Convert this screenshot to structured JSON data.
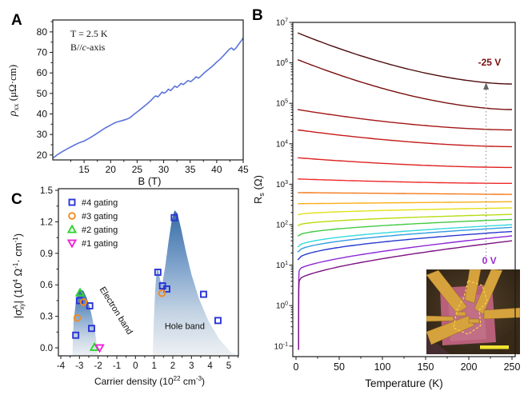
{
  "panels": {
    "a": {
      "label": "A"
    },
    "b": {
      "label": "B"
    },
    "c": {
      "label": "C"
    }
  },
  "chart_data": [
    {
      "panel": "A",
      "type": "line",
      "xlabel": "B (T)",
      "ylabel_parts": [
        {
          "t": "ρ",
          "fs": 14,
          "it": 1
        },
        {
          "t": "xx",
          "dy": 3,
          "fs": 9
        },
        {
          "t": " (μΩ·cm)",
          "dy": -3,
          "fs": 13
        }
      ],
      "annotations": {
        "line1": "T = 2.5 K",
        "line2_parts": [
          {
            "t": "B//",
            "fs": 12
          },
          {
            "t": "c",
            "fs": 12,
            "it": 1
          },
          {
            "t": "-axis",
            "fs": 12
          }
        ]
      },
      "xlim": [
        9.1,
        45
      ],
      "ylim": [
        17.6,
        85.8
      ],
      "x_ticks": [
        15,
        20,
        25,
        30,
        35,
        40,
        45
      ],
      "y_ticks": [
        20,
        30,
        40,
        50,
        60,
        70,
        80
      ],
      "line_color": "#5b74d8",
      "points": [
        [
          9.2,
          18.6
        ],
        [
          10,
          20.2
        ],
        [
          11,
          21.8
        ],
        [
          12,
          23.2
        ],
        [
          13,
          24.6
        ],
        [
          14,
          25.9
        ],
        [
          15,
          26.8
        ],
        [
          16,
          28.2
        ],
        [
          17,
          29.8
        ],
        [
          18,
          31.5
        ],
        [
          19,
          33.2
        ],
        [
          20,
          34.6
        ],
        [
          20.5,
          35.3
        ],
        [
          21,
          35.9
        ],
        [
          21.5,
          36.3
        ],
        [
          22,
          36.6
        ],
        [
          22.5,
          37.0
        ],
        [
          23,
          37.4
        ],
        [
          23.5,
          38.0
        ],
        [
          24,
          38.9
        ],
        [
          24.5,
          40.0
        ],
        [
          25,
          41.0
        ],
        [
          26,
          43.0
        ],
        [
          27,
          45.2
        ],
        [
          27.6,
          46.5
        ],
        [
          28.1,
          48.0
        ],
        [
          28.5,
          48.8
        ],
        [
          28.9,
          48.3
        ],
        [
          29.3,
          49.4
        ],
        [
          29.7,
          50.7
        ],
        [
          30.1,
          50.1
        ],
        [
          30.5,
          50.9
        ],
        [
          30.9,
          52.1
        ],
        [
          31.3,
          51.4
        ],
        [
          31.7,
          52.4
        ],
        [
          32.1,
          53.6
        ],
        [
          32.5,
          52.9
        ],
        [
          32.9,
          53.8
        ],
        [
          33.3,
          54.9
        ],
        [
          33.7,
          54.3
        ],
        [
          34.1,
          55.2
        ],
        [
          34.6,
          56.3
        ],
        [
          35.1,
          55.7
        ],
        [
          35.6,
          56.8
        ],
        [
          36.1,
          58.1
        ],
        [
          36.6,
          57.5
        ],
        [
          37.1,
          58.6
        ],
        [
          37.6,
          59.9
        ],
        [
          38.2,
          61.2
        ],
        [
          38.8,
          62.4
        ],
        [
          39.4,
          63.8
        ],
        [
          40,
          65.3
        ],
        [
          40.6,
          66.6
        ],
        [
          41.2,
          68.2
        ],
        [
          41.8,
          69.9
        ],
        [
          42.4,
          71.6
        ],
        [
          42.8,
          72.2
        ],
        [
          43.2,
          71.2
        ],
        [
          43.6,
          72.0
        ],
        [
          44,
          73.5
        ],
        [
          44.5,
          75.2
        ],
        [
          45,
          77.0
        ]
      ]
    },
    {
      "panel": "B",
      "type": "line-log",
      "xlabel": "Temperature (K)",
      "ylabel_parts": [
        {
          "t": "R",
          "fs": 13
        },
        {
          "t": "s",
          "dy": 3,
          "fs": 9
        },
        {
          "t": " (Ω)",
          "dy": -3,
          "fs": 13
        }
      ],
      "x_ticks": [
        0,
        50,
        100,
        150,
        200,
        250
      ],
      "y_tick_exponents": [
        -1,
        0,
        1,
        2,
        3,
        4,
        5,
        6,
        7
      ],
      "gate_label_top": "-25 V",
      "gate_label_top_color": "#7a1010",
      "gate_label_bottom": "0 V",
      "gate_label_bottom_color": "#9a2ad0",
      "arrow_T": 220,
      "series": [
        {
          "color": "#4f0c0c",
          "R_2K": 5500000,
          "R_250K": 300000,
          "shape": "ins",
          "sc": false
        },
        {
          "color": "#7a0f0f",
          "R_2K": 1200000,
          "R_250K": 70000,
          "shape": "ins",
          "sc": false
        },
        {
          "color": "#a31414",
          "R_2K": 70000,
          "R_250K": 22000,
          "shape": "ins",
          "sc": false
        },
        {
          "color": "#c41818",
          "R_2K": 22000,
          "R_250K": 8500,
          "shape": "ins",
          "sc": false
        },
        {
          "color": "#de1f1f",
          "R_2K": 4500,
          "R_250K": 2600,
          "shape": "ins",
          "sc": false
        },
        {
          "color": "#ef2929",
          "R_2K": 1350,
          "R_250K": 1050,
          "shape": "ins",
          "sc": false
        },
        {
          "color": "#f47a1a",
          "R_2K": 620,
          "R_250K": 560,
          "shape": "flat",
          "sc": false
        },
        {
          "color": "#fbae17",
          "R_2K": 330,
          "R_250K": 370,
          "shape": "flat",
          "sc": false
        },
        {
          "color": "#e4e019",
          "R_2K": 175,
          "R_250K": 260,
          "shape": "met",
          "sc": false
        },
        {
          "color": "#b7dc10",
          "R_2K": 95,
          "R_250K": 180,
          "shape": "met",
          "sc": false
        },
        {
          "color": "#43c943",
          "R_2K": 52,
          "R_250K": 135,
          "shape": "met",
          "sc": false
        },
        {
          "color": "#35d8dd",
          "R_2K": 28,
          "R_250K": 100,
          "shape": "met",
          "sc": false
        },
        {
          "color": "#2f9de0",
          "R_2K": 21,
          "R_250K": 86,
          "shape": "met",
          "sc": false
        },
        {
          "color": "#2638cf",
          "R_2K": 13.5,
          "R_250K": 68,
          "shape": "met",
          "sc": false
        },
        {
          "color": "#8c27d6",
          "R_2K": 7.5,
          "R_250K": 53,
          "shape": "met",
          "sc": true
        },
        {
          "color": "#7a1080",
          "R_2K": 4.2,
          "R_250K": 40,
          "shape": "met",
          "sc": true
        }
      ],
      "inset": {
        "bg_center": "#54402a",
        "bg_edge": "#2b2012",
        "flake": "#b85f79",
        "flake_light": "#c77b92",
        "gold": "#d6a23d",
        "outline": "#ffd24a",
        "scalebar": "#f0e432"
      }
    },
    {
      "panel": "C",
      "type": "scatter",
      "xlabel_parts": [
        {
          "t": "Carrier density (10",
          "fs": 12
        },
        {
          "t": "22",
          "dy": -5,
          "fs": 8
        },
        {
          "t": " cm",
          "dy": 5,
          "fs": 12
        },
        {
          "t": "-3",
          "dy": -5,
          "fs": 8
        },
        {
          "t": ")",
          "dy": 5,
          "fs": 12
        }
      ],
      "ylabel_parts": [
        {
          "t": "|σ",
          "fs": 13
        },
        {
          "t": "A",
          "dy": -5,
          "fs": 8
        },
        {
          "t": "xy",
          "dx": -6,
          "dy": 8,
          "fs": 8
        },
        {
          "t": "| (10",
          "dy": -3,
          "fs": 13
        },
        {
          "t": "4",
          "dy": -5,
          "fs": 8
        },
        {
          "t": " Ω",
          "dy": 5,
          "fs": 13
        },
        {
          "t": "-1",
          "dy": -5,
          "fs": 8
        },
        {
          "t": "· cm",
          "dy": 5,
          "fs": 13
        },
        {
          "t": "-1",
          "dy": -5,
          "fs": 8
        },
        {
          "t": ")",
          "dy": 5,
          "fs": 13
        }
      ],
      "xlim": [
        -4.13,
        5.51
      ],
      "ylim": [
        -0.076,
        1.52
      ],
      "x_ticks": [
        -4,
        -3,
        -2,
        -1,
        0,
        1,
        2,
        3,
        4,
        5
      ],
      "y_tick_labels": [
        "0.0",
        "0.3",
        "0.6",
        "0.9",
        "1.2",
        "1.5"
      ],
      "y_ticks": [
        0.0,
        0.3,
        0.6,
        0.9,
        1.2,
        1.5
      ],
      "series": [
        {
          "name": "#4 gating",
          "marker": "square",
          "color": "#2a35d6",
          "points": [
            [
              -3.2,
              0.12
            ],
            [
              -3.0,
              0.45
            ],
            [
              -2.45,
              0.4
            ],
            [
              -2.35,
              0.185
            ],
            [
              1.2,
              0.72
            ],
            [
              1.45,
              0.59
            ],
            [
              1.68,
              0.56
            ],
            [
              2.08,
              1.24
            ],
            [
              3.65,
              0.51
            ],
            [
              4.42,
              0.26
            ]
          ]
        },
        {
          "name": "#3 gating",
          "marker": "circle",
          "color": "#f58a1f",
          "points": [
            [
              -3.12,
              0.285
            ],
            [
              -2.78,
              0.435
            ],
            [
              1.42,
              0.52
            ]
          ]
        },
        {
          "name": "#2 gating",
          "marker": "triangle-up",
          "color": "#2fd32f",
          "points": [
            [
              -2.97,
              0.525
            ],
            [
              -2.2,
              0.005
            ]
          ]
        },
        {
          "name": "#1 gating",
          "marker": "triangle-down",
          "color": "#f323d6",
          "points": [
            [
              -1.92,
              0.0
            ]
          ]
        }
      ],
      "regions": [
        {
          "name": "Electron band",
          "polygon": [
            [
              -3.38,
              -0.07
            ],
            [
              -3.32,
              0.25
            ],
            [
              -3.18,
              0.45
            ],
            [
              -3.0,
              0.555
            ],
            [
              -2.8,
              0.545
            ],
            [
              -2.62,
              0.48
            ],
            [
              -2.45,
              0.39
            ],
            [
              -2.3,
              0.27
            ],
            [
              -2.15,
              0.13
            ],
            [
              -2.02,
              -0.07
            ]
          ],
          "label_x": -1.16,
          "label_y": 0.34,
          "label_rot": 58
        },
        {
          "name": "Hole band",
          "polygon": [
            [
              0.93,
              -0.07
            ],
            [
              0.98,
              0.25
            ],
            [
              1.06,
              0.55
            ],
            [
              1.15,
              0.76
            ],
            [
              1.24,
              0.73
            ],
            [
              1.33,
              0.64
            ],
            [
              1.45,
              0.62
            ],
            [
              1.6,
              0.78
            ],
            [
              1.78,
              1.02
            ],
            [
              1.95,
              1.22
            ],
            [
              2.1,
              1.31
            ],
            [
              2.25,
              1.28
            ],
            [
              2.45,
              1.13
            ],
            [
              2.7,
              0.92
            ],
            [
              3.0,
              0.7
            ],
            [
              3.4,
              0.47
            ],
            [
              3.9,
              0.26
            ],
            [
              4.5,
              0.08
            ],
            [
              5.1,
              -0.04
            ],
            [
              5.45,
              -0.07
            ]
          ],
          "label_x": 2.64,
          "label_y": 0.18,
          "label_rot": 0
        }
      ],
      "band_gradient": [
        "#38699f",
        "#4577ad",
        "#7fa3cc",
        "#c6d5e4",
        "#edf0f3"
      ]
    }
  ]
}
